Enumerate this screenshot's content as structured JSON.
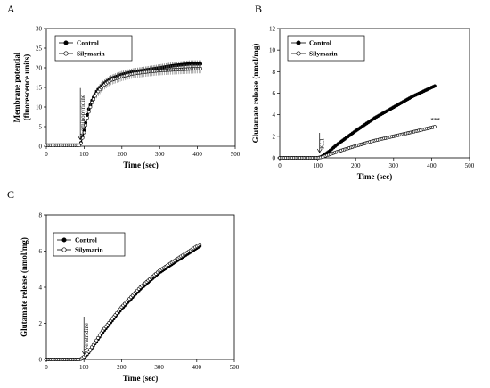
{
  "chart_data": [
    {
      "panel": "A",
      "type": "line",
      "xlabel": "Time (sec)",
      "ylabel": [
        "Membrane potential",
        "(fluorescence units)"
      ],
      "xlim": [
        0,
        500
      ],
      "ylim": [
        0,
        30
      ],
      "xticks": [
        0,
        100,
        200,
        300,
        400,
        500
      ],
      "yticks": [
        0,
        5,
        10,
        15,
        20,
        25,
        30
      ],
      "annotation": {
        "text": "4-aminopyridine",
        "x": 90
      },
      "legend_position": "top-left",
      "error_bars": true,
      "series": [
        {
          "name": "Control",
          "marker": "filled-circle",
          "x": [
            0,
            90,
            100,
            110,
            120,
            130,
            140,
            150,
            170,
            200,
            230,
            260,
            300,
            340,
            380,
            410
          ],
          "y": [
            0.3,
            0.3,
            4.0,
            8.8,
            11.5,
            13.5,
            14.8,
            15.8,
            17.2,
            18.3,
            19.0,
            19.4,
            20.0,
            20.6,
            21.0,
            21.0
          ]
        },
        {
          "name": "Silymarin",
          "marker": "open-circle",
          "x": [
            0,
            90,
            100,
            110,
            120,
            130,
            140,
            150,
            170,
            200,
            230,
            260,
            300,
            340,
            380,
            410
          ],
          "y": [
            0.2,
            0.2,
            3.5,
            8.0,
            11.0,
            13.0,
            14.3,
            15.4,
            16.8,
            17.8,
            18.5,
            18.9,
            19.3,
            19.5,
            19.7,
            19.8
          ]
        }
      ]
    },
    {
      "panel": "B",
      "type": "line",
      "xlabel": "Time (sec)",
      "ylabel": [
        "Glutamate release (nmol/mg)"
      ],
      "xlim": [
        0,
        500
      ],
      "ylim": [
        0,
        12
      ],
      "xticks": [
        0,
        100,
        200,
        300,
        400,
        500
      ],
      "yticks": [
        0,
        2,
        4,
        6,
        8,
        10,
        12
      ],
      "annotation": {
        "text": "KCl",
        "x": 105
      },
      "significance": {
        "text": "***",
        "x": 410,
        "y": 3.3
      },
      "legend_position": "top-left",
      "series": [
        {
          "name": "Control",
          "marker": "filled-circle",
          "x": [
            0,
            100,
            110,
            130,
            150,
            200,
            250,
            300,
            350,
            410
          ],
          "y": [
            0,
            0,
            0.1,
            0.6,
            1.2,
            2.5,
            3.7,
            4.7,
            5.7,
            6.7
          ]
        },
        {
          "name": "Silymarin",
          "marker": "open-circle",
          "x": [
            0,
            100,
            110,
            130,
            150,
            200,
            250,
            300,
            350,
            410
          ],
          "y": [
            0,
            0,
            0.05,
            0.3,
            0.55,
            1.1,
            1.6,
            2.0,
            2.4,
            2.9
          ]
        }
      ]
    },
    {
      "panel": "C",
      "type": "line",
      "xlabel": "Time (sec)",
      "ylabel": [
        "Glutamate release (nmol/mg)"
      ],
      "xlim": [
        0,
        500
      ],
      "ylim": [
        0,
        8
      ],
      "xticks": [
        0,
        100,
        200,
        300,
        400,
        500
      ],
      "yticks": [
        0,
        2,
        4,
        6,
        8
      ],
      "annotation": {
        "text": "Veratridine",
        "x": 100
      },
      "legend_position": "top-left",
      "series": [
        {
          "name": "Control",
          "marker": "filled-circle",
          "x": [
            0,
            90,
            100,
            110,
            130,
            150,
            200,
            250,
            300,
            350,
            410
          ],
          "y": [
            0,
            0,
            0.1,
            0.3,
            0.9,
            1.5,
            2.8,
            3.9,
            4.8,
            5.5,
            6.3
          ]
        },
        {
          "name": "Silymarin",
          "marker": "open-circle",
          "x": [
            0,
            90,
            100,
            110,
            130,
            150,
            200,
            250,
            300,
            350,
            410
          ],
          "y": [
            0,
            0,
            0.15,
            0.35,
            0.95,
            1.6,
            2.9,
            4.0,
            4.9,
            5.6,
            6.4
          ]
        }
      ]
    }
  ]
}
